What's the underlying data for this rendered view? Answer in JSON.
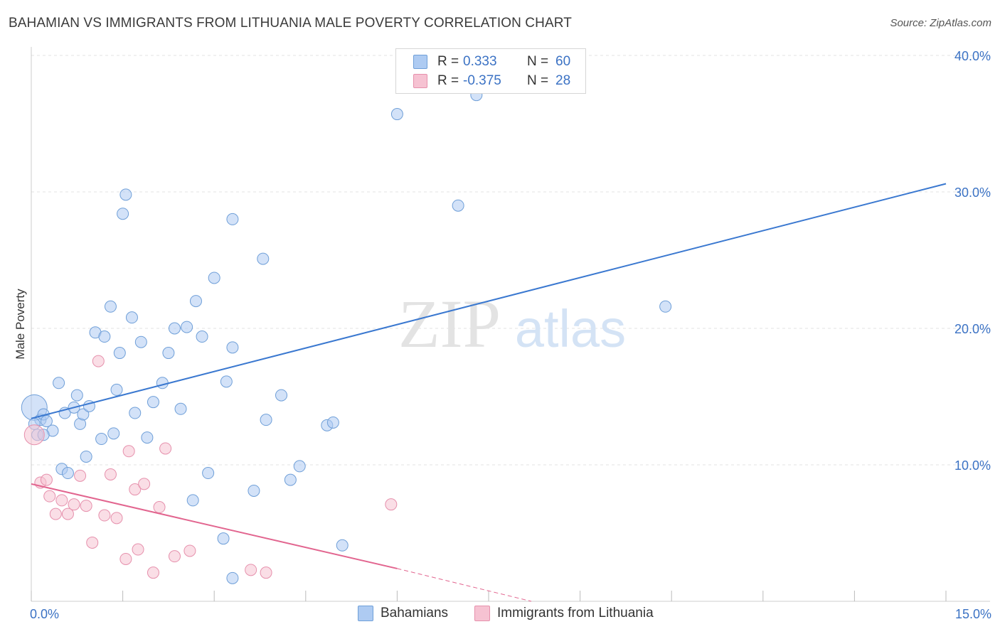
{
  "title": "BAHAMIAN VS IMMIGRANTS FROM LITHUANIA MALE POVERTY CORRELATION CHART",
  "source": "Source: ZipAtlas.com",
  "watermark": {
    "zip": "ZIP",
    "atlas": "atlas"
  },
  "legend": {
    "rows": [
      {
        "r_label": "R =",
        "r_value": "0.333",
        "n_label": "N =",
        "n_value": "60"
      },
      {
        "r_label": "R =",
        "r_value": "-0.375",
        "n_label": "N =",
        "n_value": "28"
      }
    ]
  },
  "bottom_legend": {
    "series1": "Bahamians",
    "series2": "Immigrants from Lithuania"
  },
  "colors": {
    "blue_fill": "#aecbf2",
    "blue_stroke": "#6f9fd8",
    "blue_line": "#3a78d0",
    "pink_fill": "#f6c2d2",
    "pink_stroke": "#e690ac",
    "pink_line": "#e2658f",
    "axis_text": "#3b72c4",
    "grid": "#e3e3e3"
  },
  "chart_data": {
    "type": "scatter",
    "title": "BAHAMIAN VS IMMIGRANTS FROM LITHUANIA MALE POVERTY CORRELATION CHART",
    "xlabel": "",
    "ylabel": "Male Poverty",
    "xlim": [
      0,
      15
    ],
    "ylim": [
      0,
      40
    ],
    "x_tick_labels": [
      {
        "value": 0,
        "label": "0.0%"
      },
      {
        "value": 15,
        "label": "15.0%"
      }
    ],
    "y_tick_labels": [
      {
        "value": 10,
        "label": "10.0%"
      },
      {
        "value": 20,
        "label": "20.0%"
      },
      {
        "value": 30,
        "label": "30.0%"
      },
      {
        "value": 40,
        "label": "40.0%"
      }
    ],
    "series": [
      {
        "name": "Bahamians",
        "color": "#aecbf2",
        "points": [
          [
            0.05,
            14.2
          ],
          [
            0.1,
            12.2
          ],
          [
            0.15,
            13.3
          ],
          [
            0.2,
            13.7
          ],
          [
            0.25,
            13.2
          ],
          [
            0.35,
            12.5
          ],
          [
            0.45,
            16.0
          ],
          [
            0.5,
            9.7
          ],
          [
            0.55,
            13.8
          ],
          [
            0.6,
            9.4
          ],
          [
            0.7,
            14.2
          ],
          [
            0.75,
            15.1
          ],
          [
            0.8,
            13.0
          ],
          [
            0.85,
            13.7
          ],
          [
            0.9,
            10.6
          ],
          [
            0.95,
            14.3
          ],
          [
            1.05,
            19.7
          ],
          [
            1.15,
            11.9
          ],
          [
            1.2,
            19.4
          ],
          [
            1.3,
            21.6
          ],
          [
            1.35,
            12.3
          ],
          [
            1.4,
            15.5
          ],
          [
            1.45,
            18.2
          ],
          [
            1.5,
            28.4
          ],
          [
            1.55,
            29.8
          ],
          [
            1.65,
            20.8
          ],
          [
            1.7,
            13.8
          ],
          [
            1.8,
            19.0
          ],
          [
            1.9,
            12.0
          ],
          [
            2.0,
            14.6
          ],
          [
            2.15,
            16.0
          ],
          [
            2.25,
            18.2
          ],
          [
            2.35,
            20.0
          ],
          [
            2.45,
            14.1
          ],
          [
            2.55,
            20.1
          ],
          [
            2.65,
            7.4
          ],
          [
            2.7,
            22.0
          ],
          [
            2.8,
            19.4
          ],
          [
            2.9,
            9.4
          ],
          [
            3.0,
            23.7
          ],
          [
            3.15,
            4.6
          ],
          [
            3.2,
            16.1
          ],
          [
            3.3,
            28.0
          ],
          [
            3.3,
            1.7
          ],
          [
            3.3,
            18.6
          ],
          [
            3.65,
            8.1
          ],
          [
            3.8,
            25.1
          ],
          [
            3.85,
            13.3
          ],
          [
            4.1,
            15.1
          ],
          [
            4.25,
            8.9
          ],
          [
            4.4,
            9.9
          ],
          [
            4.85,
            12.9
          ],
          [
            4.95,
            13.1
          ],
          [
            5.1,
            4.1
          ],
          [
            6.0,
            35.7
          ],
          [
            7.0,
            29.0
          ],
          [
            7.3,
            37.1
          ],
          [
            10.4,
            21.6
          ],
          [
            0.05,
            13.0
          ],
          [
            0.2,
            12.2
          ]
        ]
      },
      {
        "name": "Immigrants from Lithuania",
        "color": "#f6c2d2",
        "points": [
          [
            0.05,
            12.2
          ],
          [
            0.15,
            8.7
          ],
          [
            0.25,
            8.9
          ],
          [
            0.3,
            7.7
          ],
          [
            0.4,
            6.4
          ],
          [
            0.5,
            7.4
          ],
          [
            0.6,
            6.4
          ],
          [
            0.7,
            7.1
          ],
          [
            0.8,
            9.2
          ],
          [
            0.9,
            7.0
          ],
          [
            1.0,
            4.3
          ],
          [
            1.1,
            17.6
          ],
          [
            1.2,
            6.3
          ],
          [
            1.3,
            9.3
          ],
          [
            1.4,
            6.1
          ],
          [
            1.55,
            3.1
          ],
          [
            1.6,
            11.0
          ],
          [
            1.7,
            8.2
          ],
          [
            1.75,
            3.8
          ],
          [
            1.85,
            8.6
          ],
          [
            2.0,
            2.1
          ],
          [
            2.1,
            6.9
          ],
          [
            2.2,
            11.2
          ],
          [
            2.35,
            3.3
          ],
          [
            2.6,
            3.7
          ],
          [
            3.6,
            2.3
          ],
          [
            3.85,
            2.1
          ],
          [
            5.9,
            7.1
          ]
        ]
      }
    ],
    "trend_lines": [
      {
        "series": "Bahamians",
        "x": [
          0,
          15
        ],
        "y": [
          13.4,
          30.6
        ],
        "style": "solid"
      },
      {
        "series": "Immigrants from Lithuania",
        "x": [
          0,
          6
        ],
        "y": [
          8.6,
          2.4
        ],
        "style": "solid"
      },
      {
        "series": "Immigrants from Lithuania",
        "x": [
          6,
          8.2
        ],
        "y": [
          2.4,
          0.0
        ],
        "style": "dashed"
      }
    ],
    "grid": true
  }
}
